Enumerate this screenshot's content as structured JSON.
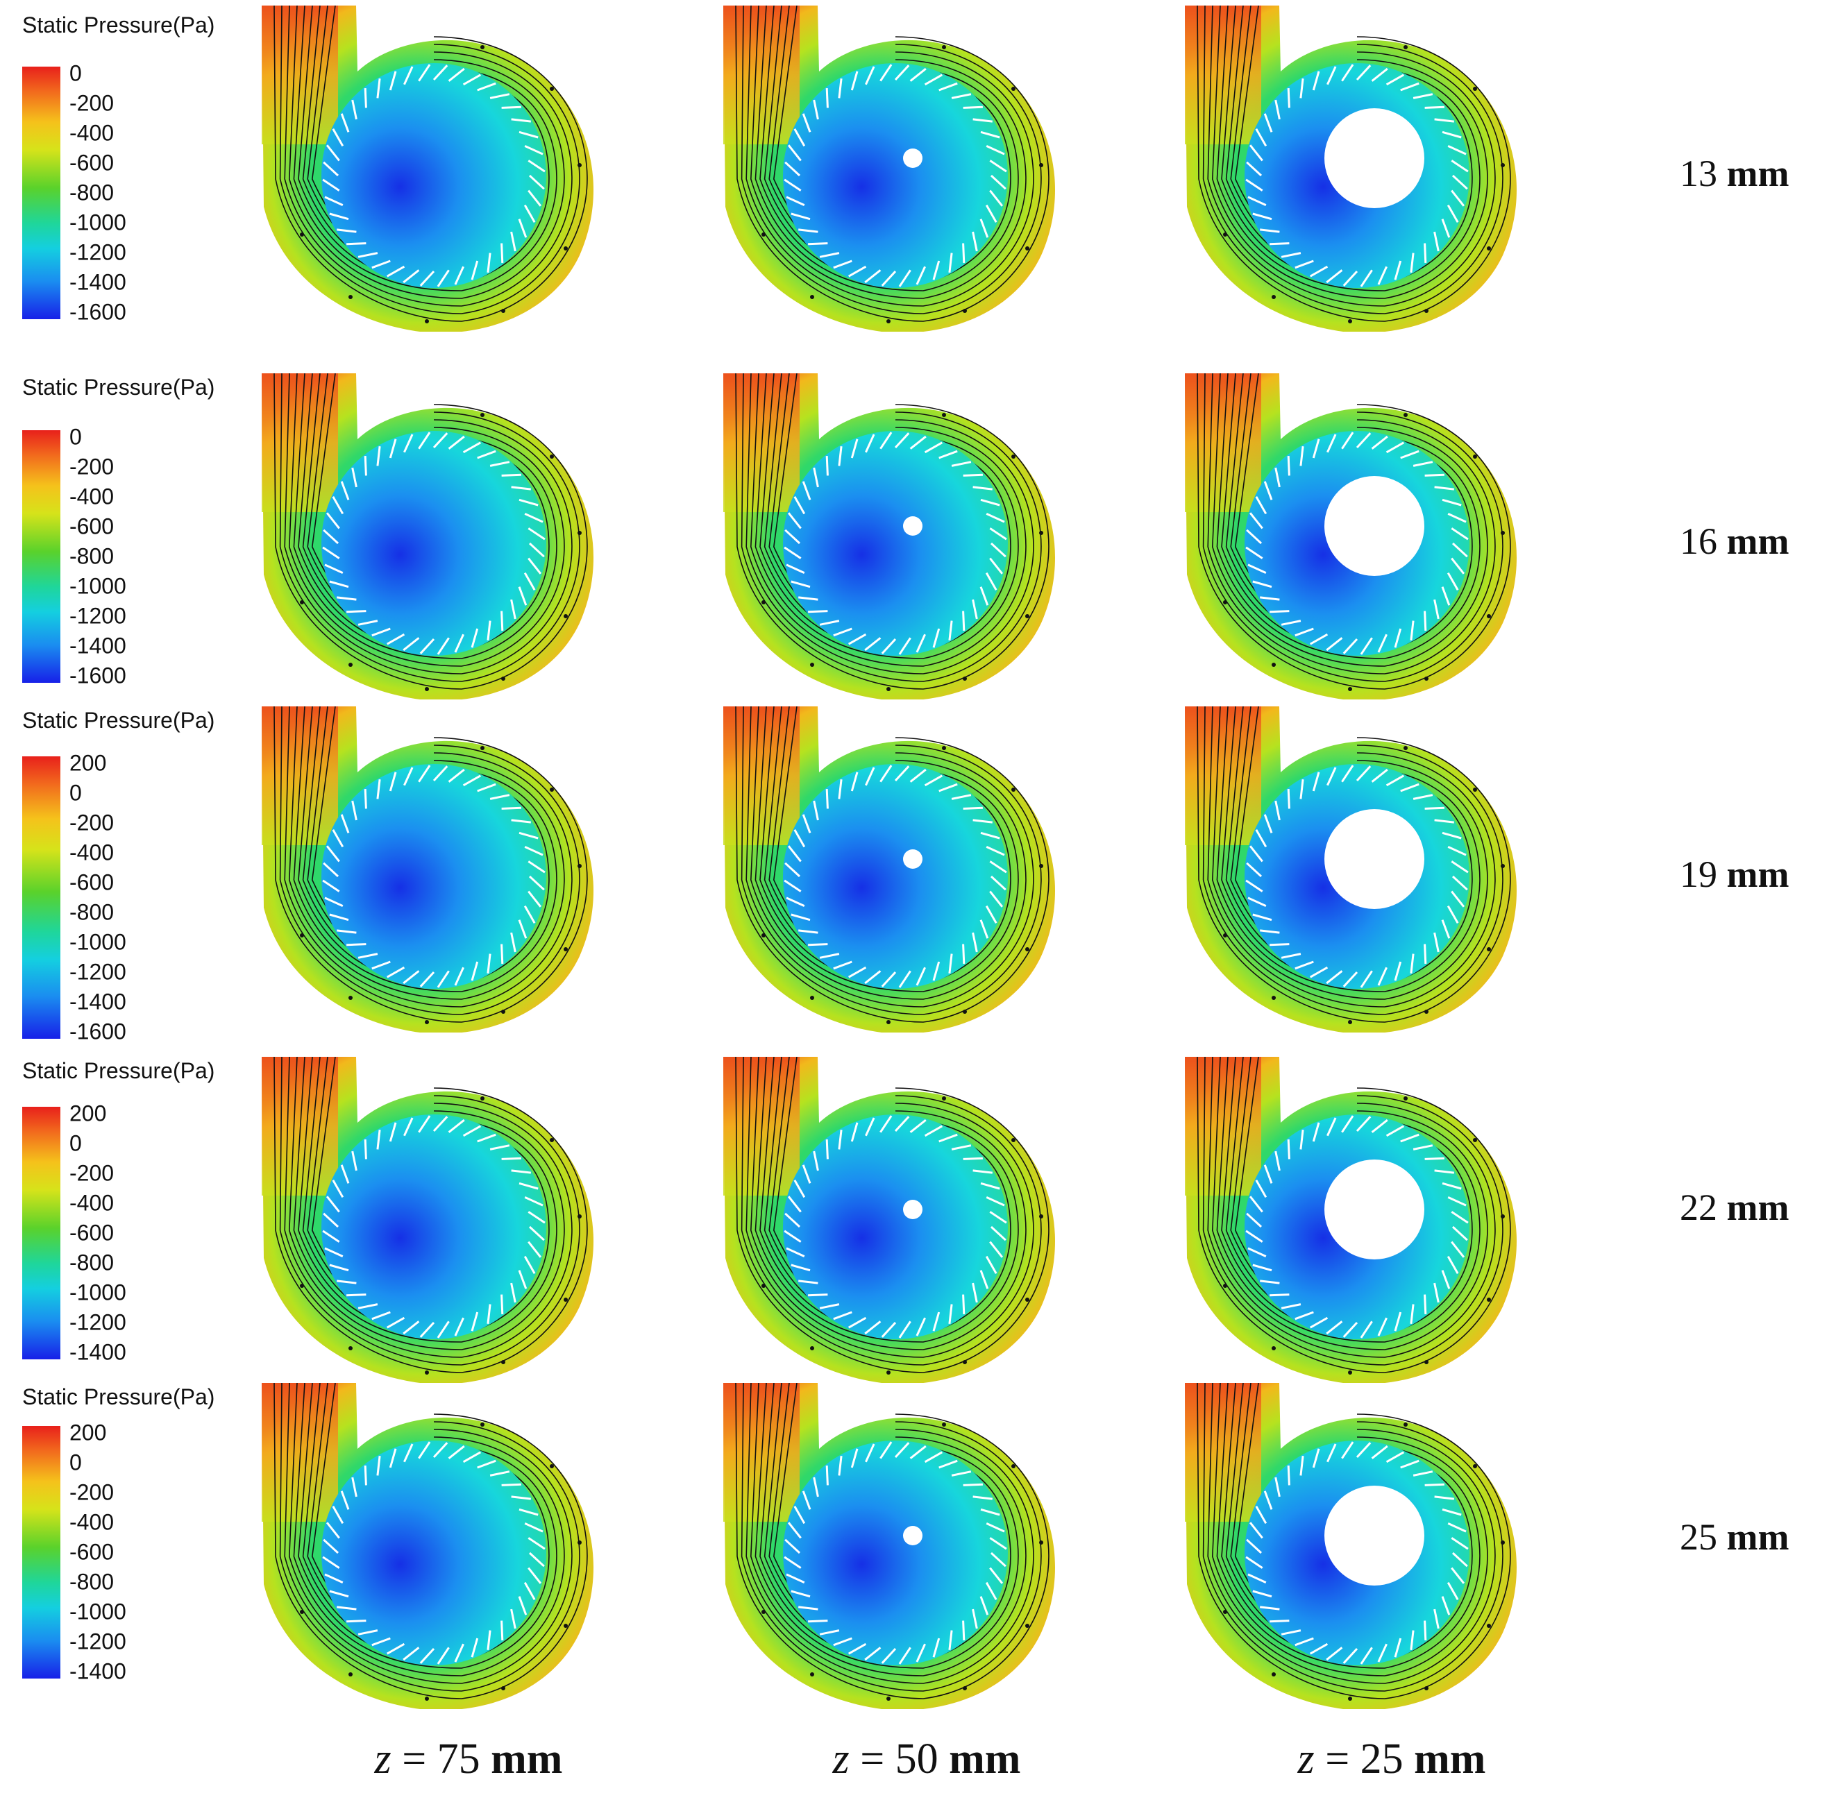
{
  "legend_title": "Static Pressure(Pa)",
  "rows": [
    {
      "label_value": "13",
      "label_unit": "mm",
      "ticks": [
        "0",
        "-200",
        "-400",
        "-600",
        "-800",
        "-1000",
        "-1200",
        "-1400",
        "-1600"
      ]
    },
    {
      "label_value": "16",
      "label_unit": "mm",
      "ticks": [
        "0",
        "-200",
        "-400",
        "-600",
        "-800",
        "-1000",
        "-1200",
        "-1400",
        "-1600"
      ]
    },
    {
      "label_value": "19",
      "label_unit": "mm",
      "ticks": [
        "200",
        "0",
        "-200",
        "-400",
        "-600",
        "-800",
        "-1000",
        "-1200",
        "-1400",
        "-1600"
      ]
    },
    {
      "label_value": "22",
      "label_unit": "mm",
      "ticks": [
        "200",
        "0",
        "-200",
        "-400",
        "-600",
        "-800",
        "-1000",
        "-1200",
        "-1400"
      ]
    },
    {
      "label_value": "25",
      "label_unit": "mm",
      "ticks": [
        "200",
        "0",
        "-200",
        "-400",
        "-600",
        "-800",
        "-1000",
        "-1200",
        "-1400"
      ]
    }
  ],
  "columns": [
    {
      "var": "z",
      "eq": "= 75",
      "unit": "mm",
      "hub": "none"
    },
    {
      "var": "z",
      "eq": "= 50",
      "unit": "mm",
      "hub": "small"
    },
    {
      "var": "z",
      "eq": "= 25",
      "unit": "mm",
      "hub": "large"
    }
  ],
  "colors": {
    "high": "#e8201b",
    "mid": "#5ad22b",
    "low": "#1720e8",
    "streamline": "#111111",
    "blade": "#ffffff"
  }
}
